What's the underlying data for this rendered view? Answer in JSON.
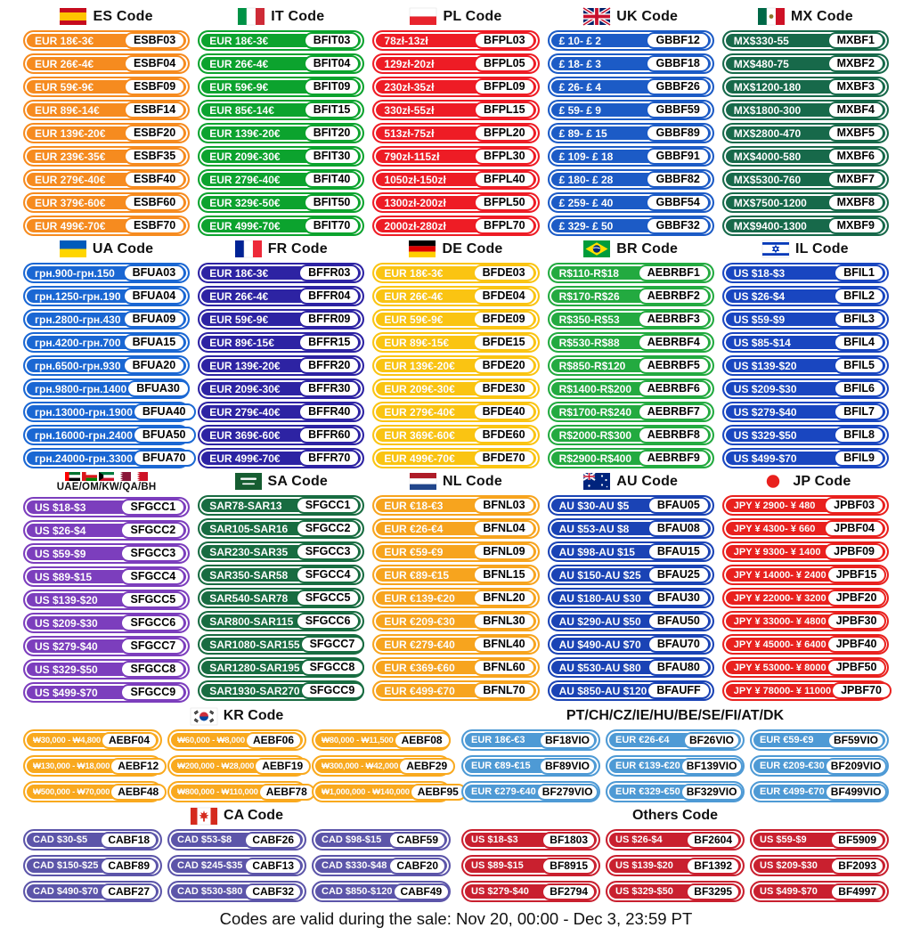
{
  "footer_note": "Codes are valid during the sale: Nov 20, 00:00 - Dec 3, 23:59 PT",
  "sections": {
    "es": {
      "title": "ES Code",
      "flag": "es",
      "color": "#F68B1F",
      "rows": [
        {
          "range": "EUR 18€-3€",
          "code": "ESBF03"
        },
        {
          "range": "EUR 26€-4€",
          "code": "ESBF04"
        },
        {
          "range": "EUR 59€-9€",
          "code": "ESBF09"
        },
        {
          "range": "EUR 89€-14€",
          "code": "ESBF14"
        },
        {
          "range": "EUR 139€-20€",
          "code": "ESBF20"
        },
        {
          "range": "EUR 239€-35€",
          "code": "ESBF35"
        },
        {
          "range": "EUR 279€-40€",
          "code": "ESBF40"
        },
        {
          "range": "EUR 379€-60€",
          "code": "ESBF60"
        },
        {
          "range": "EUR 499€-70€",
          "code": "ESBF70"
        }
      ]
    },
    "it": {
      "title": "IT Code",
      "flag": "it",
      "color": "#0CA32E",
      "rows": [
        {
          "range": "EUR 18€-3€",
          "code": "BFIT03"
        },
        {
          "range": "EUR 26€-4€",
          "code": "BFIT04"
        },
        {
          "range": "EUR 59€-9€",
          "code": "BFIT09"
        },
        {
          "range": "EUR 85€-14€",
          "code": "BFIT15"
        },
        {
          "range": "EUR 139€-20€",
          "code": "BFIT20"
        },
        {
          "range": "EUR 209€-30€",
          "code": "BFIT30"
        },
        {
          "range": "EUR 279€-40€",
          "code": "BFIT40"
        },
        {
          "range": "EUR 329€-50€",
          "code": "BFIT50"
        },
        {
          "range": "EUR 499€-70€",
          "code": "BFIT70"
        }
      ]
    },
    "pl": {
      "title": "PL Code",
      "flag": "pl",
      "color": "#EE1C25",
      "rows": [
        {
          "range": "78zł-13zł",
          "code": "BFPL03"
        },
        {
          "range": "129zł-20zł",
          "code": "BFPL05"
        },
        {
          "range": "230zł-35zł",
          "code": "BFPL09"
        },
        {
          "range": "330zł-55zł",
          "code": "BFPL15"
        },
        {
          "range": "513zł-75zł",
          "code": "BFPL20"
        },
        {
          "range": "790zł-115zł",
          "code": "BFPL30"
        },
        {
          "range": "1050zł-150zł",
          "code": "BFPL40"
        },
        {
          "range": "1300zł-200zł",
          "code": "BFPL50"
        },
        {
          "range": "2000zł-280zł",
          "code": "BFPL70"
        }
      ]
    },
    "uk": {
      "title": "UK Code",
      "flag": "uk",
      "color": "#1C5BC6",
      "rows": [
        {
          "range": "£ 10- £ 2",
          "code": "GBBF12"
        },
        {
          "range": "£ 18- £ 3",
          "code": "GBBF18"
        },
        {
          "range": "£ 26- £ 4",
          "code": "GBBF26"
        },
        {
          "range": "£ 59- £ 9",
          "code": "GBBF59"
        },
        {
          "range": "£ 89- £ 15",
          "code": "GBBF89"
        },
        {
          "range": "£ 109- £ 18",
          "code": "GBBF91"
        },
        {
          "range": "£ 180- £ 28",
          "code": "GBBF82"
        },
        {
          "range": "£ 259- £ 40",
          "code": "GBBF54"
        },
        {
          "range": "£ 329- £ 50",
          "code": "GBBF32"
        }
      ]
    },
    "mx": {
      "title": "MX Code",
      "flag": "mx",
      "color": "#17694A",
      "rows": [
        {
          "range": "MX$330-55",
          "code": "MXBF1"
        },
        {
          "range": "MX$480-75",
          "code": "MXBF2"
        },
        {
          "range": "MX$1200-180",
          "code": "MXBF3"
        },
        {
          "range": "MX$1800-300",
          "code": "MXBF4"
        },
        {
          "range": "MX$2800-470",
          "code": "MXBF5"
        },
        {
          "range": "MX$4000-580",
          "code": "MXBF6"
        },
        {
          "range": "MX$5300-760",
          "code": "MXBF7"
        },
        {
          "range": "MX$7500-1200",
          "code": "MXBF8"
        },
        {
          "range": "MX$9400-1300",
          "code": "MXBF9"
        }
      ]
    },
    "ua": {
      "title": "UA Code",
      "flag": "ua",
      "color": "#1A67D3",
      "rows": [
        {
          "range": "грн.900-грн.150",
          "code": "BFUA03"
        },
        {
          "range": "грн.1250-грн.190",
          "code": "BFUA04"
        },
        {
          "range": "грн.2800-грн.430",
          "code": "BFUA09"
        },
        {
          "range": "грн.4200-грн.700",
          "code": "BFUA15"
        },
        {
          "range": "грн.6500-грн.930",
          "code": "BFUA20"
        },
        {
          "range": "грн.9800-грн.1400",
          "code": "BFUA30"
        },
        {
          "range": "грн.13000-грн.1900",
          "code": "BFUA40"
        },
        {
          "range": "грн.16000-грн.2400",
          "code": "BFUA50"
        },
        {
          "range": "грн.24000-грн.3300",
          "code": "BFUA70"
        }
      ]
    },
    "fr": {
      "title": "FR Code",
      "flag": "fr",
      "color": "#2D23A3",
      "rows": [
        {
          "range": "EUR 18€-3€",
          "code": "BFFR03"
        },
        {
          "range": "EUR 26€-4€",
          "code": "BFFR04"
        },
        {
          "range": "EUR 59€-9€",
          "code": "BFFR09"
        },
        {
          "range": "EUR 89€-15€",
          "code": "BFFR15"
        },
        {
          "range": "EUR 139€-20€",
          "code": "BFFR20"
        },
        {
          "range": "EUR 209€-30€",
          "code": "BFFR30"
        },
        {
          "range": "EUR 279€-40€",
          "code": "BFFR40"
        },
        {
          "range": "EUR 369€-60€",
          "code": "BFFR60"
        },
        {
          "range": "EUR 499€-70€",
          "code": "BFFR70"
        }
      ]
    },
    "de": {
      "title": "DE Code",
      "flag": "de",
      "color": "#FAC412",
      "rows": [
        {
          "range": "EUR 18€-3€",
          "code": "BFDE03"
        },
        {
          "range": "EUR 26€-4€",
          "code": "BFDE04"
        },
        {
          "range": "EUR 59€-9€",
          "code": "BFDE09"
        },
        {
          "range": "EUR 89€-15€",
          "code": "BFDE15"
        },
        {
          "range": "EUR 139€-20€",
          "code": "BFDE20"
        },
        {
          "range": "EUR 209€-30€",
          "code": "BFDE30"
        },
        {
          "range": "EUR 279€-40€",
          "code": "BFDE40"
        },
        {
          "range": "EUR 369€-60€",
          "code": "BFDE60"
        },
        {
          "range": "EUR 499€-70€",
          "code": "BFDE70"
        }
      ]
    },
    "br": {
      "title": "BR Code",
      "flag": "br",
      "color": "#23AA40",
      "rows": [
        {
          "range": "R$110-R$18",
          "code": "AEBRBF1"
        },
        {
          "range": "R$170-R$26",
          "code": "AEBRBF2"
        },
        {
          "range": "R$350-R$53",
          "code": "AEBRBF3"
        },
        {
          "range": "R$530-R$88",
          "code": "AEBRBF4"
        },
        {
          "range": "R$850-R$120",
          "code": "AEBRBF5"
        },
        {
          "range": "R$1400-R$200",
          "code": "AEBRBF6"
        },
        {
          "range": "R$1700-R$240",
          "code": "AEBRBF7"
        },
        {
          "range": "R$2000-R$300",
          "code": "AEBRBF8"
        },
        {
          "range": "R$2900-R$400",
          "code": "AEBRBF9"
        }
      ]
    },
    "il": {
      "title": "IL Code",
      "flag": "il",
      "color": "#1946C0",
      "rows": [
        {
          "range": "US $18-$3",
          "code": "BFIL1"
        },
        {
          "range": "US $26-$4",
          "code": "BFIL2"
        },
        {
          "range": "US $59-$9",
          "code": "BFIL3"
        },
        {
          "range": "US $85-$14",
          "code": "BFIL4"
        },
        {
          "range": "US $139-$20",
          "code": "BFIL5"
        },
        {
          "range": "US $209-$30",
          "code": "BFIL6"
        },
        {
          "range": "US $279-$40",
          "code": "BFIL7"
        },
        {
          "range": "US $329-$50",
          "code": "BFIL8"
        },
        {
          "range": "US $499-$70",
          "code": "BFIL9"
        }
      ]
    },
    "gcc": {
      "title": "UAE/OM/KW/QA/BH",
      "flag": "gcc",
      "color": "#7C3EBD",
      "header_style": "stacked",
      "rows": [
        {
          "range": "US $18-$3",
          "code": "SFGCC1"
        },
        {
          "range": "US $26-$4",
          "code": "SFGCC2"
        },
        {
          "range": "US $59-$9",
          "code": "SFGCC3"
        },
        {
          "range": "US $89-$15",
          "code": "SFGCC4"
        },
        {
          "range": "US $139-$20",
          "code": "SFGCC5"
        },
        {
          "range": "US $209-$30",
          "code": "SFGCC6"
        },
        {
          "range": "US $279-$40",
          "code": "SFGCC7"
        },
        {
          "range": "US $329-$50",
          "code": "SFGCC8"
        },
        {
          "range": "US $499-$70",
          "code": "SFGCC9"
        }
      ]
    },
    "sa": {
      "title": "SA Code",
      "flag": "sa",
      "color": "#186C41",
      "rows": [
        {
          "range": "SAR78-SAR13",
          "code": "SFGCC1"
        },
        {
          "range": "SAR105-SAR16",
          "code": "SFGCC2"
        },
        {
          "range": "SAR230-SAR35",
          "code": "SFGCC3"
        },
        {
          "range": "SAR350-SAR58",
          "code": "SFGCC4"
        },
        {
          "range": "SAR540-SAR78",
          "code": "SFGCC5"
        },
        {
          "range": "SAR800-SAR115",
          "code": "SFGCC6"
        },
        {
          "range": "SAR1080-SAR155",
          "code": "SFGCC7"
        },
        {
          "range": "SAR1280-SAR195",
          "code": "SFGCC8"
        },
        {
          "range": "SAR1930-SAR270",
          "code": "SFGCC9"
        }
      ]
    },
    "nl": {
      "title": "NL Code",
      "flag": "nl",
      "color": "#F7A41E",
      "rows": [
        {
          "range": "EUR €18-€3",
          "code": "BFNL03"
        },
        {
          "range": "EUR €26-€4",
          "code": "BFNL04"
        },
        {
          "range": "EUR €59-€9",
          "code": "BFNL09"
        },
        {
          "range": "EUR €89-€15",
          "code": "BFNL15"
        },
        {
          "range": "EUR €139-€20",
          "code": "BFNL20"
        },
        {
          "range": "EUR €209-€30",
          "code": "BFNL30"
        },
        {
          "range": "EUR €279-€40",
          "code": "BFNL40"
        },
        {
          "range": "EUR €369-€60",
          "code": "BFNL60"
        },
        {
          "range": "EUR €499-€70",
          "code": "BFNL70"
        }
      ]
    },
    "au": {
      "title": "AU Code",
      "flag": "au",
      "color": "#1A43B5",
      "rows": [
        {
          "range": "AU $30-AU $5",
          "code": "BFAU05"
        },
        {
          "range": "AU $53-AU $8",
          "code": "BFAU08"
        },
        {
          "range": "AU $98-AU $15",
          "code": "BFAU15"
        },
        {
          "range": "AU $150-AU $25",
          "code": "BFAU25"
        },
        {
          "range": "AU $180-AU $30",
          "code": "BFAU30"
        },
        {
          "range": "AU $290-AU $50",
          "code": "BFAU50"
        },
        {
          "range": "AU $490-AU $70",
          "code": "BFAU70"
        },
        {
          "range": "AU $530-AU $80",
          "code": "BFAU80"
        },
        {
          "range": "AU $850-AU $120",
          "code": "BFAUFF"
        }
      ]
    },
    "jp": {
      "title": "JP Code",
      "flag": "jp",
      "color": "#E9211E",
      "rows": [
        {
          "range": "JPY ¥ 2900- ¥ 480",
          "code": "JPBF03"
        },
        {
          "range": "JPY ¥ 4300- ¥ 660",
          "code": "JPBF04"
        },
        {
          "range": "JPY ¥ 9300- ¥ 1400",
          "code": "JPBF09"
        },
        {
          "range": "JPY ¥ 14000- ¥ 2400",
          "code": "JPBF15"
        },
        {
          "range": "JPY ¥ 22000- ¥ 3200",
          "code": "JPBF20"
        },
        {
          "range": "JPY ¥ 33000- ¥ 4800",
          "code": "JPBF30"
        },
        {
          "range": "JPY ¥ 45000- ¥ 6400",
          "code": "JPBF40"
        },
        {
          "range": "JPY ¥ 53000- ¥ 8000",
          "code": "JPBF50"
        },
        {
          "range": "JPY ¥ 78000- ¥ 11000",
          "code": "JPBF70"
        }
      ]
    },
    "kr": {
      "title": "KR Code",
      "flag": "kr",
      "color": "#F9A91E",
      "rows": [
        {
          "range": "₩30,000 - ₩4,800",
          "code": "AEBF04"
        },
        {
          "range": "₩60,000 - ₩8,000",
          "code": "AEBF06"
        },
        {
          "range": "₩80,000 - ₩11,500",
          "code": "AEBF08"
        },
        {
          "range": "₩130,000 - ₩18,000",
          "code": "AEBF12"
        },
        {
          "range": "₩200,000 - ₩28,000",
          "code": "AEBF19"
        },
        {
          "range": "₩300,000 - ₩42,000",
          "code": "AEBF29"
        },
        {
          "range": "₩500,000 - ₩70,000",
          "code": "AEBF48"
        },
        {
          "range": "₩800,000 - ₩110,000",
          "code": "AEBF78"
        },
        {
          "range": "₩1,000,000 - ₩140,000",
          "code": "AEBF95"
        }
      ]
    },
    "vio": {
      "title": "PT/CH/CZ/IE/HU/BE/SE/FI/AT/DK",
      "flag": null,
      "color": "#4E9AD5",
      "rows": [
        {
          "range": "EUR 18€-€3",
          "code": "BF18VIO"
        },
        {
          "range": "EUR €26-€4",
          "code": "BF26VIO"
        },
        {
          "range": "EUR €59-€9",
          "code": "BF59VIO"
        },
        {
          "range": "EUR €89-€15",
          "code": "BF89VIO"
        },
        {
          "range": "EUR €139-€20",
          "code": "BF139VIO"
        },
        {
          "range": "EUR €209-€30",
          "code": "BF209VIO"
        },
        {
          "range": "EUR €279-€40",
          "code": "BF279VIO"
        },
        {
          "range": "EUR €329-€50",
          "code": "BF329VIO"
        },
        {
          "range": "EUR €499-€70",
          "code": "BF499VIO"
        }
      ]
    },
    "ca": {
      "title": "CA Code",
      "flag": "ca",
      "color": "#5C55A9",
      "rows": [
        {
          "range": "CAD $30-$5",
          "code": "CABF18"
        },
        {
          "range": "CAD $53-$8",
          "code": "CABF26"
        },
        {
          "range": "CAD $98-$15",
          "code": "CABF59"
        },
        {
          "range": "CAD $150-$25",
          "code": "CABF89"
        },
        {
          "range": "CAD $245-$35",
          "code": "CABF13"
        },
        {
          "range": "CAD $330-$48",
          "code": "CABF20"
        },
        {
          "range": "CAD $490-$70",
          "code": "CABF27"
        },
        {
          "range": "CAD $530-$80",
          "code": "CABF32"
        },
        {
          "range": "CAD $850-$120",
          "code": "CABF49"
        }
      ]
    },
    "others": {
      "title": "Others Code",
      "flag": null,
      "color": "#C9202F",
      "rows": [
        {
          "range": "US $18-$3",
          "code": "BF1803"
        },
        {
          "range": "US $26-$4",
          "code": "BF2604"
        },
        {
          "range": "US $59-$9",
          "code": "BF5909"
        },
        {
          "range": "US $89-$15",
          "code": "BF8915"
        },
        {
          "range": "US $139-$20",
          "code": "BF1392"
        },
        {
          "range": "US $209-$30",
          "code": "BF2093"
        },
        {
          "range": "US $279-$40",
          "code": "BF2794"
        },
        {
          "range": "US $329-$50",
          "code": "BF3295"
        },
        {
          "range": "US $499-$70",
          "code": "BF4997"
        }
      ]
    }
  }
}
